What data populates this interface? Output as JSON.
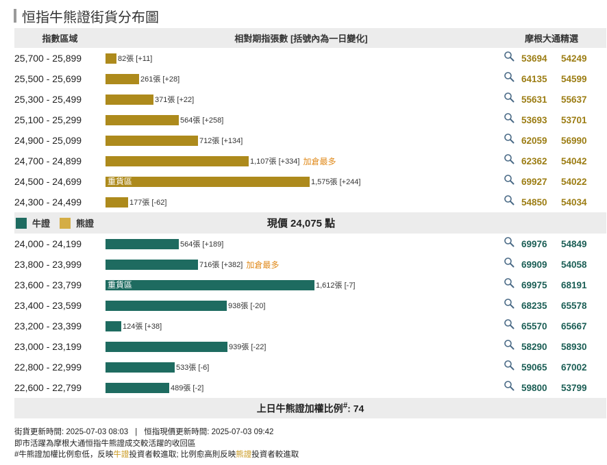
{
  "title": "恒指牛熊證街貨分布圖",
  "headers": {
    "range": "指數區域",
    "contracts": "相對期指張數 [括號內為一日變化]",
    "picks": "摩根大通精選"
  },
  "legend": {
    "bull": "牛證",
    "bear": "熊證"
  },
  "current_price_label": "現價 24,075 點",
  "heavy_label": "重貨區",
  "hot_label": "加倉最多",
  "ratio_label": "上日牛熊證加權比例",
  "ratio_mark": "#",
  "ratio_value": ": 74",
  "footer": {
    "update_time": "街貨更新時間: 2025-07-03 08:03",
    "separator": "|",
    "price_time": "恒指現價更新時間: 2025-07-03 09:42",
    "note1": "即市活躍為摩根大通恒指牛熊證成交較活躍的收回區",
    "note2_a": "#牛熊證加權比例愈低，反映",
    "note2_bull": "牛證",
    "note2_b": "投資者較進取; 比例愈高則反映",
    "note2_bear": "熊證",
    "note2_c": "投資者較進取"
  },
  "colors": {
    "bear": "#ad8a1c",
    "bull": "#1e6b60",
    "hot": "#e08a1b",
    "header_bg": "#ececec"
  },
  "icons": {
    "picks": "search-icon"
  },
  "chart_data": {
    "type": "bar",
    "orientation": "horizontal",
    "unit": "張",
    "xlim": [
      0,
      1800
    ],
    "bear_rows": [
      {
        "range": "25,700 - 25,899",
        "value": 82,
        "label": "82張 [+11]",
        "picks": [
          "53694",
          "54249"
        ]
      },
      {
        "range": "25,500 - 25,699",
        "value": 261,
        "label": "261張 [+28]",
        "picks": [
          "64135",
          "54599"
        ]
      },
      {
        "range": "25,300 - 25,499",
        "value": 371,
        "label": "371張 [+22]",
        "picks": [
          "55631",
          "55637"
        ]
      },
      {
        "range": "25,100 - 25,299",
        "value": 564,
        "label": "564張 [+258]",
        "picks": [
          "53693",
          "53701"
        ]
      },
      {
        "range": "24,900 - 25,099",
        "value": 712,
        "label": "712張 [+134]",
        "picks": [
          "62059",
          "56990"
        ]
      },
      {
        "range": "24,700 - 24,899",
        "value": 1107,
        "label": "1,107張 [+334]",
        "hot": true,
        "picks": [
          "62362",
          "54042"
        ]
      },
      {
        "range": "24,500 - 24,699",
        "value": 1575,
        "label": "1,575張 [+244]",
        "heavy": true,
        "picks": [
          "69927",
          "54022"
        ]
      },
      {
        "range": "24,300 - 24,499",
        "value": 177,
        "label": "177張 [-62]",
        "picks": [
          "54850",
          "54034"
        ]
      }
    ],
    "bull_rows": [
      {
        "range": "24,000 - 24,199",
        "value": 564,
        "label": "564張 [+189]",
        "picks": [
          "69976",
          "54849"
        ]
      },
      {
        "range": "23,800 - 23,999",
        "value": 716,
        "label": "716張 [+382]",
        "hot": true,
        "picks": [
          "69909",
          "54058"
        ]
      },
      {
        "range": "23,600 - 23,799",
        "value": 1612,
        "label": "1,612張 [-7]",
        "heavy": true,
        "picks": [
          "69975",
          "68191"
        ]
      },
      {
        "range": "23,400 - 23,599",
        "value": 938,
        "label": "938張 [-20]",
        "picks": [
          "68235",
          "65578"
        ]
      },
      {
        "range": "23,200 - 23,399",
        "value": 124,
        "label": "124張 [+38]",
        "picks": [
          "65570",
          "65667"
        ]
      },
      {
        "range": "23,000 - 23,199",
        "value": 939,
        "label": "939張 [-22]",
        "picks": [
          "58290",
          "58930"
        ]
      },
      {
        "range": "22,800 - 22,999",
        "value": 533,
        "label": "533張 [-6]",
        "picks": [
          "59065",
          "67002"
        ]
      },
      {
        "range": "22,600 - 22,799",
        "value": 489,
        "label": "489張 [-2]",
        "picks": [
          "59800",
          "53799"
        ]
      }
    ]
  }
}
